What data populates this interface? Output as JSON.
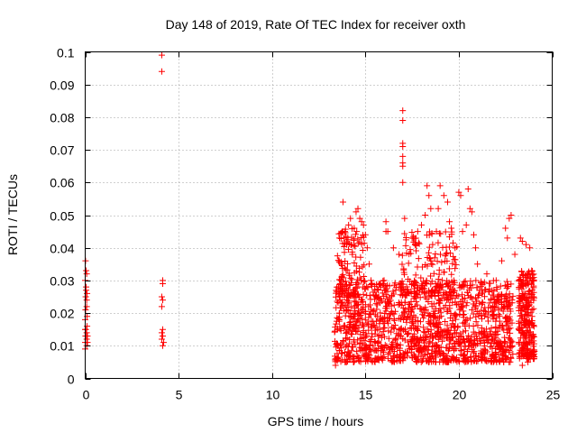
{
  "chart_data": {
    "type": "scatter",
    "title": "Day 148 of 2019, Rate Of TEC Index for receiver oxth",
    "xlabel": "GPS time / hours",
    "ylabel": "ROTI / TECUs",
    "xlim": [
      0,
      25
    ],
    "ylim": [
      0,
      0.1
    ],
    "xticks": [
      0,
      5,
      10,
      15,
      20,
      25
    ],
    "xtick_labels": [
      "0",
      "5",
      "10",
      "15",
      "20",
      "25"
    ],
    "yticks": [
      0,
      0.01,
      0.02,
      0.03,
      0.04,
      0.05,
      0.06,
      0.07,
      0.08,
      0.09,
      0.1
    ],
    "ytick_labels": [
      "0",
      "0.01",
      "0.02",
      "0.03",
      "0.04",
      "0.05",
      "0.06",
      "0.07",
      "0.08",
      "0.09",
      "0.1"
    ],
    "grid": true,
    "marker": "+",
    "color": "#ff0000",
    "series": [
      {
        "name": "ROTI",
        "points": [
          [
            0.0,
            0.009
          ],
          [
            0.0,
            0.011
          ],
          [
            0.02,
            0.013
          ],
          [
            0.03,
            0.015
          ],
          [
            0.0,
            0.018
          ],
          [
            0.02,
            0.021
          ],
          [
            0.03,
            0.025
          ],
          [
            0.05,
            0.027
          ],
          [
            0.0,
            0.03
          ],
          [
            0.05,
            0.033
          ],
          [
            0.02,
            0.036
          ],
          [
            0.08,
            0.01
          ],
          [
            0.08,
            0.012
          ],
          [
            0.08,
            0.014
          ],
          [
            0.1,
            0.016
          ],
          [
            0.1,
            0.019
          ],
          [
            0.08,
            0.022
          ],
          [
            0.08,
            0.024
          ],
          [
            0.1,
            0.026
          ],
          [
            0.05,
            0.028
          ],
          [
            0.08,
            0.032
          ],
          [
            0.12,
            0.011
          ],
          [
            0.12,
            0.013
          ],
          [
            0.0,
            0.015
          ],
          [
            4.1,
            0.099
          ],
          [
            4.1,
            0.094
          ],
          [
            4.15,
            0.03
          ],
          [
            4.15,
            0.029
          ],
          [
            4.1,
            0.025
          ],
          [
            4.15,
            0.024
          ],
          [
            4.1,
            0.022
          ],
          [
            4.15,
            0.015
          ],
          [
            4.1,
            0.014
          ],
          [
            4.15,
            0.013
          ],
          [
            4.1,
            0.012
          ],
          [
            4.2,
            0.011
          ],
          [
            4.15,
            0.01
          ],
          [
            13.4,
            0.006
          ],
          [
            13.5,
            0.01
          ],
          [
            13.5,
            0.015
          ],
          [
            13.6,
            0.02
          ],
          [
            13.6,
            0.025
          ],
          [
            13.7,
            0.03
          ],
          [
            13.7,
            0.035
          ],
          [
            13.8,
            0.054
          ],
          [
            13.9,
            0.045
          ],
          [
            14.0,
            0.041
          ],
          [
            14.1,
            0.047
          ],
          [
            14.2,
            0.049
          ],
          [
            14.3,
            0.038
          ],
          [
            14.4,
            0.046
          ],
          [
            14.5,
            0.051
          ],
          [
            14.6,
            0.052
          ],
          [
            14.7,
            0.049
          ],
          [
            14.8,
            0.048
          ],
          [
            14.9,
            0.047
          ],
          [
            15.0,
            0.044
          ],
          [
            15.1,
            0.04
          ],
          [
            15.2,
            0.035
          ],
          [
            15.3,
            0.03
          ],
          [
            15.5,
            0.027
          ],
          [
            15.7,
            0.025
          ],
          [
            16.0,
            0.03
          ],
          [
            16.1,
            0.048
          ],
          [
            16.1,
            0.045
          ],
          [
            16.2,
            0.045
          ],
          [
            16.5,
            0.04
          ],
          [
            16.8,
            0.038
          ],
          [
            17.0,
            0.082
          ],
          [
            17.0,
            0.079
          ],
          [
            17.0,
            0.072
          ],
          [
            17.0,
            0.071
          ],
          [
            17.0,
            0.068
          ],
          [
            17.0,
            0.066
          ],
          [
            17.0,
            0.065
          ],
          [
            17.0,
            0.06
          ],
          [
            17.1,
            0.049
          ],
          [
            17.5,
            0.043
          ],
          [
            17.8,
            0.045
          ],
          [
            18.0,
            0.047
          ],
          [
            18.2,
            0.05
          ],
          [
            18.3,
            0.059
          ],
          [
            18.4,
            0.056
          ],
          [
            18.5,
            0.052
          ],
          [
            18.6,
            0.041
          ],
          [
            18.8,
            0.045
          ],
          [
            18.9,
            0.052
          ],
          [
            19.0,
            0.059
          ],
          [
            19.2,
            0.056
          ],
          [
            19.4,
            0.054
          ],
          [
            19.5,
            0.048
          ],
          [
            19.6,
            0.046
          ],
          [
            19.8,
            0.04
          ],
          [
            20.0,
            0.057
          ],
          [
            20.1,
            0.056
          ],
          [
            20.2,
            0.045
          ],
          [
            20.4,
            0.047
          ],
          [
            20.5,
            0.058
          ],
          [
            20.6,
            0.052
          ],
          [
            20.7,
            0.051
          ],
          [
            20.8,
            0.044
          ],
          [
            20.9,
            0.04
          ],
          [
            21.0,
            0.035
          ],
          [
            21.5,
            0.032
          ],
          [
            22.0,
            0.03
          ],
          [
            22.3,
            0.036
          ],
          [
            22.5,
            0.046
          ],
          [
            22.6,
            0.043
          ],
          [
            22.7,
            0.049
          ],
          [
            22.8,
            0.05
          ],
          [
            23.0,
            0.038
          ],
          [
            23.3,
            0.043
          ],
          [
            23.4,
            0.042
          ],
          [
            23.6,
            0.041
          ],
          [
            23.8,
            0.04
          ],
          [
            23.9,
            0.033
          ],
          [
            24.0,
            0.025
          ],
          [
            22.4,
            0.005
          ],
          [
            21.8,
            0.007
          ],
          [
            20.3,
            0.006
          ],
          [
            19.4,
            0.005
          ],
          [
            18.1,
            0.006
          ],
          [
            16.9,
            0.007
          ],
          [
            15.6,
            0.006
          ],
          [
            14.2,
            0.007
          ],
          [
            13.4,
            0.004
          ],
          [
            23.4,
            0.004
          ],
          [
            23.7,
            0.005
          ],
          [
            24.0,
            0.008
          ]
        ],
        "dense_regions": [
          {
            "x_range": [
              13.35,
              22.9
            ],
            "y_range": [
              0.005,
              0.03
            ],
            "count": 1400
          },
          {
            "x_range": [
              23.2,
              24.05
            ],
            "y_range": [
              0.006,
              0.033
            ],
            "count": 260
          },
          {
            "x_range": [
              13.5,
              15.0
            ],
            "y_range": [
              0.025,
              0.046
            ],
            "count": 110
          },
          {
            "x_range": [
              16.8,
              19.9
            ],
            "y_range": [
              0.025,
              0.045
            ],
            "count": 140
          }
        ]
      }
    ]
  }
}
